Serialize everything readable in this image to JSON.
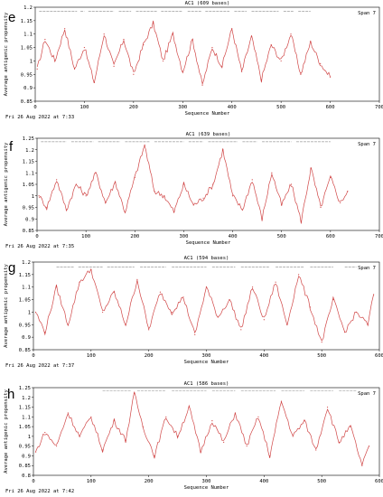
{
  "chart_data": [
    {
      "panel": "e",
      "type": "line",
      "title": "AC1 (609 bases)",
      "span_label": "Span 7",
      "xlabel": "Sequence Number",
      "ylabel": "Average antigenic propensity",
      "xlim": [
        0,
        700
      ],
      "ylim": [
        0.85,
        1.2
      ],
      "xticks": [
        0,
        100,
        200,
        300,
        400,
        500,
        600,
        700
      ],
      "yticks": [
        0.85,
        0.9,
        0.95,
        1.0,
        1.05,
        1.1,
        1.15,
        1.2
      ],
      "ytick_labels": [
        "0.85",
        "0.9",
        "0.95",
        "1",
        "1.05",
        "1.1",
        "1.15",
        "1.2"
      ],
      "footer": "Fri 26 Aug 2022 at 7:33",
      "series": [
        {
          "x": [
            4,
            20,
            40,
            60,
            80,
            100,
            120,
            140,
            160,
            180,
            200,
            220,
            240,
            260,
            280,
            300,
            320,
            340,
            360,
            380,
            400,
            420,
            440,
            460,
            480,
            500,
            520,
            540,
            560,
            580,
            600
          ],
          "values": [
            0.97,
            1.08,
            1.0,
            1.12,
            0.97,
            1.05,
            0.92,
            1.1,
            0.98,
            1.08,
            0.95,
            1.06,
            1.14,
            1.0,
            1.1,
            0.96,
            1.08,
            0.91,
            1.05,
            0.98,
            1.12,
            0.96,
            1.09,
            0.93,
            1.06,
            1.0,
            1.1,
            0.95,
            1.07,
            0.99,
            0.94
          ]
        }
      ],
      "gaps_bar": {
        "y": 1.185,
        "segments": [
          [
            8,
            85
          ],
          [
            92,
            100
          ],
          [
            108,
            160
          ],
          [
            170,
            195
          ],
          [
            205,
            248
          ],
          [
            256,
            300
          ],
          [
            310,
            338
          ],
          [
            346,
            395
          ],
          [
            405,
            430
          ],
          [
            440,
            495
          ],
          [
            505,
            525
          ],
          [
            535,
            560
          ]
        ]
      }
    },
    {
      "panel": "f",
      "type": "line",
      "title": "AC1 (639 bases)",
      "span_label": "Span 7",
      "xlabel": "Sequence Number",
      "ylabel": "Average antigenic propensity",
      "xlim": [
        0,
        700
      ],
      "ylim": [
        0.85,
        1.25
      ],
      "xticks": [
        0,
        100,
        200,
        300,
        400,
        500,
        600,
        700
      ],
      "yticks": [
        0.85,
        0.9,
        0.95,
        1.0,
        1.05,
        1.1,
        1.15,
        1.2,
        1.25
      ],
      "ytick_labels": [
        "0.85",
        "0.9",
        "0.95",
        "1",
        "1.05",
        "1.1",
        "1.15",
        "1.2",
        "1.25"
      ],
      "footer": "Fri 26 Aug 2022 at 7:35",
      "series": [
        {
          "x": [
            4,
            20,
            40,
            60,
            80,
            100,
            120,
            140,
            160,
            180,
            200,
            220,
            240,
            260,
            280,
            300,
            320,
            340,
            360,
            380,
            400,
            420,
            440,
            460,
            480,
            500,
            520,
            540,
            560,
            580,
            600,
            620,
            635
          ],
          "values": [
            1.0,
            0.95,
            1.07,
            0.94,
            1.05,
            1.0,
            1.1,
            0.97,
            1.06,
            0.93,
            1.08,
            1.22,
            1.02,
            1.0,
            0.93,
            1.05,
            0.96,
            0.99,
            1.05,
            1.2,
            1.0,
            0.94,
            1.07,
            0.9,
            1.1,
            0.96,
            1.05,
            0.89,
            1.12,
            0.95,
            1.08,
            0.97,
            1.02
          ]
        }
      ],
      "gaps_bar": {
        "y": 1.235,
        "segments": [
          [
            8,
            60
          ],
          [
            70,
            115
          ],
          [
            125,
            170
          ],
          [
            180,
            230
          ],
          [
            240,
            300
          ],
          [
            310,
            340
          ],
          [
            350,
            410
          ],
          [
            420,
            450
          ],
          [
            460,
            520
          ],
          [
            530,
            600
          ]
        ]
      }
    },
    {
      "panel": "g",
      "type": "line",
      "title": "AC1 (594 bases)",
      "span_label": "Span 7",
      "xlabel": "Sequence Number",
      "ylabel": "Average antigenic propensity",
      "xlim": [
        0,
        600
      ],
      "ylim": [
        0.85,
        1.2
      ],
      "xticks": [
        0,
        100,
        200,
        300,
        400,
        500,
        600
      ],
      "yticks": [
        0.85,
        0.9,
        0.95,
        1.0,
        1.05,
        1.1,
        1.15,
        1.2
      ],
      "ytick_labels": [
        "0.85",
        "0.9",
        "0.95",
        "1",
        "1.05",
        "1.1",
        "1.15",
        "1.2"
      ],
      "footer": "Fri 26 Aug 2022 at 7:37",
      "series": [
        {
          "x": [
            4,
            20,
            40,
            60,
            80,
            100,
            120,
            140,
            160,
            180,
            200,
            220,
            240,
            260,
            280,
            300,
            320,
            340,
            360,
            380,
            400,
            420,
            440,
            460,
            480,
            500,
            520,
            540,
            560,
            580,
            590
          ],
          "values": [
            1.0,
            0.92,
            1.1,
            0.95,
            1.12,
            1.17,
            1.0,
            1.08,
            0.95,
            1.13,
            0.93,
            1.08,
            1.0,
            1.06,
            0.91,
            1.1,
            0.98,
            1.05,
            0.93,
            1.1,
            0.97,
            1.12,
            0.95,
            1.15,
            1.02,
            0.88,
            1.05,
            0.92,
            1.0,
            0.95,
            1.07
          ]
        }
      ],
      "gaps_bar": {
        "y": 1.18,
        "segments": [
          [
            40,
            70
          ],
          [
            78,
            120
          ],
          [
            128,
            175
          ],
          [
            185,
            230
          ],
          [
            240,
            300
          ],
          [
            310,
            350
          ],
          [
            360,
            410
          ],
          [
            420,
            470
          ],
          [
            480,
            520
          ],
          [
            540,
            560
          ]
        ]
      }
    },
    {
      "panel": "h",
      "type": "line",
      "title": "AC1 (586 bases)",
      "span_label": "Span 7",
      "xlabel": "Sequence Number",
      "ylabel": "Average antigenic propensity",
      "xlim": [
        0,
        600
      ],
      "ylim": [
        0.8,
        1.25
      ],
      "xticks": [
        0,
        100,
        200,
        300,
        400,
        500,
        600
      ],
      "yticks": [
        0.8,
        0.85,
        0.9,
        0.95,
        1.0,
        1.05,
        1.1,
        1.15,
        1.2,
        1.25
      ],
      "ytick_labels": [
        "0.8",
        "0.85",
        "0.9",
        "0.95",
        "1",
        "1.05",
        "1.1",
        "1.15",
        "1.2",
        "1.25"
      ],
      "footer": "Fri 26 Aug 2022 at 7:42",
      "series": [
        {
          "x": [
            4,
            20,
            40,
            60,
            80,
            100,
            120,
            140,
            160,
            175,
            190,
            210,
            230,
            250,
            270,
            290,
            310,
            330,
            350,
            370,
            390,
            410,
            430,
            450,
            470,
            490,
            510,
            530,
            550,
            570,
            582
          ],
          "values": [
            0.92,
            1.02,
            0.95,
            1.12,
            1.0,
            1.1,
            0.93,
            1.08,
            0.98,
            1.22,
            1.05,
            0.9,
            1.1,
            1.0,
            1.15,
            0.92,
            1.08,
            0.97,
            1.12,
            0.95,
            1.1,
            0.9,
            1.18,
            1.0,
            1.08,
            0.93,
            1.15,
            0.97,
            1.05,
            0.85,
            0.95
          ]
        }
      ],
      "gaps_bar": {
        "y": 1.235,
        "segments": [
          [
            120,
            170
          ],
          [
            180,
            230
          ],
          [
            240,
            300
          ],
          [
            310,
            350
          ],
          [
            360,
            420
          ],
          [
            430,
            470
          ],
          [
            480,
            520
          ],
          [
            530,
            560
          ]
        ]
      }
    }
  ],
  "colors": {
    "line": "#d04545",
    "gap_bar": "#aaaaaa",
    "axis": "#000000"
  }
}
